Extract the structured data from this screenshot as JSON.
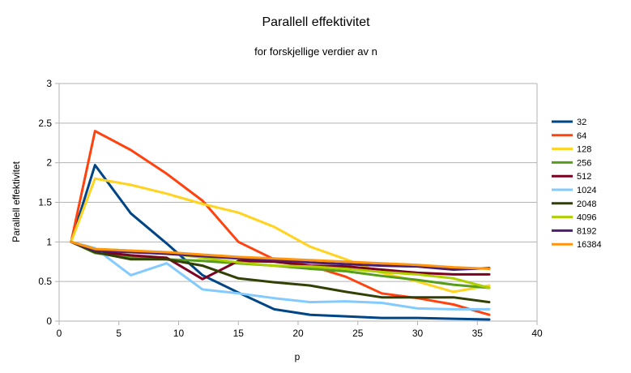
{
  "chart_data": {
    "type": "line",
    "title": "Parallell effektivitet",
    "subtitle": "for forskjellige verdier av n",
    "xlabel": "p",
    "ylabel": "Parallell effektivitet",
    "xlim": [
      0,
      40
    ],
    "ylim": [
      0,
      3
    ],
    "xticks": [
      0,
      5,
      10,
      15,
      20,
      25,
      30,
      35,
      40
    ],
    "yticks": [
      0,
      0.5,
      1,
      1.5,
      2,
      2.5,
      3
    ],
    "grid": "horizontal",
    "legend_position": "right",
    "x": [
      1,
      3,
      6,
      9,
      12,
      15,
      18,
      21,
      24,
      27,
      30,
      33,
      36
    ],
    "series": [
      {
        "name": "32",
        "color": "#004586",
        "values": [
          1,
          1.97,
          1.36,
          0.98,
          0.58,
          0.36,
          0.15,
          0.08,
          0.06,
          0.04,
          0.04,
          0.03,
          0.02
        ]
      },
      {
        "name": "64",
        "color": "#ff420e",
        "values": [
          1,
          2.4,
          2.16,
          1.86,
          1.52,
          1.0,
          0.78,
          0.7,
          0.56,
          0.35,
          0.29,
          0.21,
          0.08
        ]
      },
      {
        "name": "128",
        "color": "#ffd320",
        "values": [
          1,
          1.8,
          1.72,
          1.61,
          1.48,
          1.37,
          1.19,
          0.94,
          0.78,
          0.61,
          0.5,
          0.37,
          0.45
        ]
      },
      {
        "name": "256",
        "color": "#579d1c",
        "values": [
          1,
          0.86,
          0.8,
          0.78,
          0.76,
          0.73,
          0.7,
          0.66,
          0.63,
          0.57,
          0.52,
          0.46,
          0.42
        ]
      },
      {
        "name": "512",
        "color": "#7e0021",
        "values": [
          1,
          0.88,
          0.83,
          0.8,
          0.53,
          0.76,
          0.75,
          0.7,
          0.69,
          0.65,
          0.61,
          0.59,
          0.59
        ]
      },
      {
        "name": "1024",
        "color": "#83caff",
        "values": [
          1,
          0.92,
          0.58,
          0.73,
          0.4,
          0.35,
          0.29,
          0.24,
          0.25,
          0.23,
          0.16,
          0.15,
          0.15
        ]
      },
      {
        "name": "2048",
        "color": "#314004",
        "values": [
          1,
          0.87,
          0.78,
          0.78,
          0.7,
          0.54,
          0.49,
          0.45,
          0.37,
          0.3,
          0.3,
          0.3,
          0.24
        ]
      },
      {
        "name": "4096",
        "color": "#aecf00",
        "values": [
          1,
          0.91,
          0.89,
          0.86,
          0.8,
          0.74,
          0.7,
          0.69,
          0.66,
          0.62,
          0.59,
          0.54,
          0.42
        ]
      },
      {
        "name": "8192",
        "color": "#4b1f6f",
        "values": [
          1,
          0.89,
          0.87,
          0.85,
          0.82,
          0.79,
          0.77,
          0.74,
          0.72,
          0.7,
          0.69,
          0.65,
          0.67
        ]
      },
      {
        "name": "16384",
        "color": "#ff950e",
        "values": [
          1,
          0.91,
          0.89,
          0.87,
          0.84,
          0.81,
          0.79,
          0.77,
          0.75,
          0.73,
          0.71,
          0.68,
          0.66
        ]
      }
    ]
  }
}
